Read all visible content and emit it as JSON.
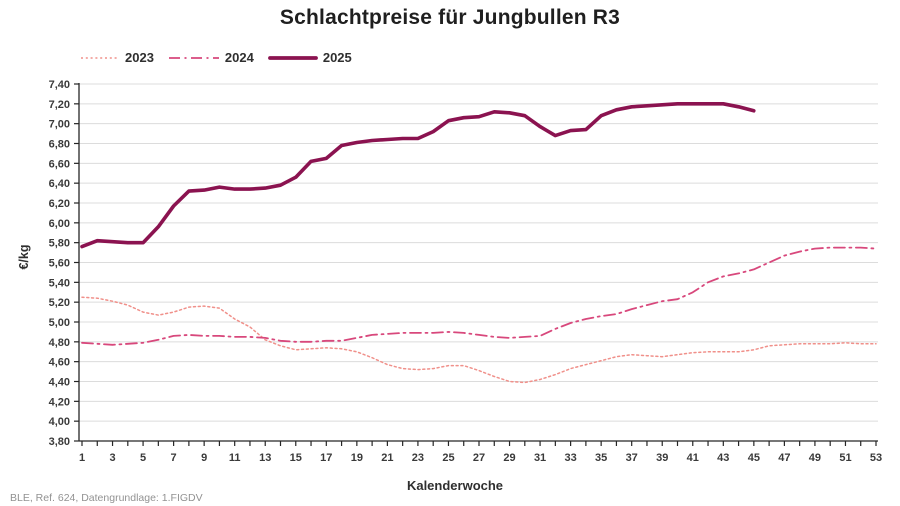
{
  "title": "Schlachtpreise für Jungbullen R3",
  "source_note": "BLE, Ref. 624, Datengrundlage: 1.FIGDV",
  "colors": {
    "grid": "#dcdcdc",
    "axis": "#262626",
    "tick_text": "#3a3a3a",
    "title_text": "#1f1f1f",
    "note_text": "#929292"
  },
  "chart_data": {
    "type": "line",
    "title": "Schlachtpreise für Jungbullen R3",
    "xlabel": "Kalenderwoche",
    "ylabel": "€/kg",
    "grid": true,
    "legend_position": "top-left",
    "xlim": [
      1,
      53
    ],
    "ylim": [
      3.8,
      7.4
    ],
    "y_tick_step": 0.2,
    "y_tick_labels": [
      "7,40",
      "7,20",
      "7,00",
      "6,80",
      "6,60",
      "6,40",
      "6,20",
      "6,00",
      "5,80",
      "5,60",
      "5,40",
      "5,20",
      "5,00",
      "4,80",
      "4,60",
      "4,40",
      "4,20",
      "4,00",
      "3,80"
    ],
    "x_tick_labels": [
      "1",
      "3",
      "5",
      "7",
      "9",
      "11",
      "13",
      "15",
      "17",
      "19",
      "21",
      "23",
      "25",
      "27",
      "29",
      "31",
      "33",
      "35",
      "37",
      "39",
      "41",
      "43",
      "45",
      "47",
      "49",
      "51",
      "53"
    ],
    "x_minor_tick_every_week": true,
    "series": [
      {
        "name": "2023",
        "color": "#f0908a",
        "style": "dotted",
        "width": 1.5,
        "values": [
          5.25,
          5.24,
          5.21,
          5.17,
          5.1,
          5.07,
          5.1,
          5.15,
          5.16,
          5.14,
          5.03,
          4.95,
          4.82,
          4.76,
          4.72,
          4.73,
          4.74,
          4.73,
          4.7,
          4.64,
          4.57,
          4.53,
          4.52,
          4.53,
          4.56,
          4.56,
          4.51,
          4.45,
          4.4,
          4.39,
          4.42,
          4.47,
          4.53,
          4.57,
          4.61,
          4.65,
          4.67,
          4.66,
          4.65,
          4.67,
          4.69,
          4.7,
          4.7,
          4.7,
          4.72,
          4.76,
          4.77,
          4.78,
          4.78,
          4.78,
          4.79,
          4.78,
          4.78
        ]
      },
      {
        "name": "2024",
        "color": "#d8487c",
        "style": "dashdot",
        "width": 1.8,
        "values": [
          4.79,
          4.78,
          4.77,
          4.78,
          4.79,
          4.82,
          4.86,
          4.87,
          4.86,
          4.86,
          4.85,
          4.85,
          4.84,
          4.81,
          4.8,
          4.8,
          4.81,
          4.81,
          4.84,
          4.87,
          4.88,
          4.89,
          4.89,
          4.89,
          4.9,
          4.89,
          4.87,
          4.85,
          4.84,
          4.85,
          4.86,
          4.93,
          4.99,
          5.03,
          5.06,
          5.08,
          5.13,
          5.17,
          5.21,
          5.23,
          5.3,
          5.4,
          5.46,
          5.49,
          5.53,
          5.6,
          5.67,
          5.71,
          5.74,
          5.75,
          5.75,
          5.75,
          5.74
        ]
      },
      {
        "name": "2025",
        "color": "#8b1350",
        "style": "solid",
        "width": 3.6,
        "values": [
          5.76,
          5.82,
          5.81,
          5.8,
          5.8,
          5.96,
          6.17,
          6.32,
          6.33,
          6.36,
          6.34,
          6.34,
          6.35,
          6.38,
          6.46,
          6.62,
          6.65,
          6.78,
          6.81,
          6.83,
          6.84,
          6.85,
          6.85,
          6.92,
          7.03,
          7.06,
          7.07,
          7.12,
          7.11,
          7.08,
          6.97,
          6.88,
          6.93,
          6.94,
          7.08,
          7.14,
          7.17,
          7.18,
          7.19,
          7.2,
          7.2,
          7.2,
          7.2,
          7.17,
          7.13
        ]
      }
    ]
  }
}
